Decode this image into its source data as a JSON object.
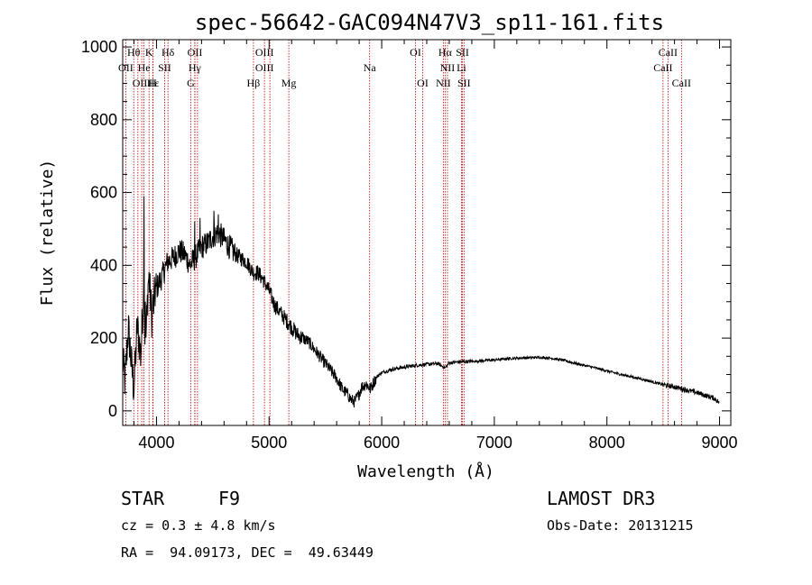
{
  "chart_data": {
    "type": "line",
    "title": "spec-56642-GAC094N47V3_sp11-161.fits",
    "xlabel": "Wavelength (Å)",
    "ylabel": "Flux (relative)",
    "xlim": [
      3700,
      9100
    ],
    "ylim": [
      -40,
      1020
    ],
    "xticks": [
      4000,
      5000,
      6000,
      7000,
      8000,
      9000
    ],
    "yticks": [
      0,
      200,
      400,
      600,
      800,
      1000
    ],
    "grid": false,
    "series": [
      {
        "name": "spectrum",
        "anchors": [
          [
            3700,
            140
          ],
          [
            3720,
            80
          ],
          [
            3750,
            230
          ],
          [
            3780,
            120
          ],
          [
            3800,
            60
          ],
          [
            3830,
            240
          ],
          [
            3860,
            150
          ],
          [
            3890,
            360
          ],
          [
            3900,
            150
          ],
          [
            3930,
            380
          ],
          [
            3960,
            250
          ],
          [
            3990,
            330
          ],
          [
            4050,
            370
          ],
          [
            4100,
            410
          ],
          [
            4150,
            420
          ],
          [
            4200,
            440
          ],
          [
            4250,
            430
          ],
          [
            4300,
            400
          ],
          [
            4340,
            420
          ],
          [
            4400,
            450
          ],
          [
            4450,
            460
          ],
          [
            4500,
            480
          ],
          [
            4550,
            490
          ],
          [
            4600,
            470
          ],
          [
            4650,
            450
          ],
          [
            4700,
            430
          ],
          [
            4750,
            420
          ],
          [
            4800,
            410
          ],
          [
            4860,
            380
          ],
          [
            4900,
            380
          ],
          [
            4950,
            360
          ],
          [
            5000,
            330
          ],
          [
            5050,
            290
          ],
          [
            5100,
            270
          ],
          [
            5150,
            250
          ],
          [
            5200,
            230
          ],
          [
            5250,
            210
          ],
          [
            5300,
            200
          ],
          [
            5350,
            190
          ],
          [
            5400,
            170
          ],
          [
            5450,
            150
          ],
          [
            5500,
            130
          ],
          [
            5550,
            110
          ],
          [
            5600,
            90
          ],
          [
            5650,
            60
          ],
          [
            5700,
            45
          ],
          [
            5730,
            30
          ],
          [
            5760,
            25
          ],
          [
            5790,
            40
          ],
          [
            5820,
            65
          ],
          [
            5860,
            75
          ],
          [
            5900,
            60
          ],
          [
            5930,
            80
          ],
          [
            5960,
            95
          ],
          [
            6000,
            105
          ],
          [
            6050,
            110
          ],
          [
            6100,
            115
          ],
          [
            6200,
            120
          ],
          [
            6300,
            125
          ],
          [
            6400,
            128
          ],
          [
            6500,
            130
          ],
          [
            6563,
            118
          ],
          [
            6600,
            132
          ],
          [
            6700,
            135
          ],
          [
            6800,
            136
          ],
          [
            6900,
            138
          ],
          [
            7000,
            140
          ],
          [
            7100,
            143
          ],
          [
            7200,
            145
          ],
          [
            7300,
            146
          ],
          [
            7400,
            147
          ],
          [
            7500,
            145
          ],
          [
            7600,
            140
          ],
          [
            7700,
            132
          ],
          [
            7800,
            125
          ],
          [
            7900,
            118
          ],
          [
            8000,
            110
          ],
          [
            8100,
            102
          ],
          [
            8200,
            95
          ],
          [
            8300,
            88
          ],
          [
            8400,
            80
          ],
          [
            8500,
            72
          ],
          [
            8600,
            66
          ],
          [
            8700,
            58
          ],
          [
            8800,
            50
          ],
          [
            8900,
            40
          ],
          [
            8950,
            35
          ],
          [
            8990,
            25
          ],
          [
            9000,
            18
          ]
        ]
      }
    ],
    "spikes": [
      [
        3835,
        260
      ],
      [
        3890,
        590
      ],
      [
        3900,
        300
      ],
      [
        3931,
        360
      ],
      [
        3968,
        320
      ],
      [
        4340,
        520
      ],
      [
        4386,
        530
      ],
      [
        4510,
        550
      ],
      [
        4550,
        540
      ]
    ],
    "line_markers": {
      "row1": [
        {
          "label": "Hθ",
          "x": 3798
        },
        {
          "label": "K",
          "x": 3934
        },
        {
          "label": "Hδ",
          "x": 4102
        },
        {
          "label": "OII",
          "x": 4341
        },
        {
          "label": "OIII",
          "x": 4959
        },
        {
          "label": "OI",
          "x": 6300
        },
        {
          "label": "Hα",
          "x": 6563
        },
        {
          "label": "SII",
          "x": 6717
        },
        {
          "label": "CaII",
          "x": 8542
        }
      ],
      "row2": [
        {
          "label": "OII",
          "x": 3727
        },
        {
          "label": "He",
          "x": 3889
        },
        {
          "label": "SII",
          "x": 4072
        },
        {
          "label": "Hγ",
          "x": 4340
        },
        {
          "label": "OIII",
          "x": 4959
        },
        {
          "label": "Na",
          "x": 5893
        },
        {
          "label": "NII",
          "x": 6584
        },
        {
          "label": "Li",
          "x": 6708
        },
        {
          "label": "CaII",
          "x": 8498
        }
      ],
      "row3": [
        {
          "label": "OIII",
          "x": 3869
        },
        {
          "label": "Hε",
          "x": 3970
        },
        {
          "label": "H",
          "x": 3968
        },
        {
          "label": "G",
          "x": 4305
        },
        {
          "label": "Hβ",
          "x": 4861
        },
        {
          "label": "Mg",
          "x": 5175
        },
        {
          "label": "OI",
          "x": 6364
        },
        {
          "label": "NII",
          "x": 6548
        },
        {
          "label": "SII",
          "x": 6731
        },
        {
          "label": "CaII",
          "x": 8662
        }
      ],
      "extra_lines": [
        3798,
        3835,
        3889,
        3934,
        3968,
        4102,
        4305,
        4341,
        4364,
        4861,
        4959,
        5007,
        5175,
        5893,
        6300,
        6364,
        6548,
        6563,
        6584,
        6708,
        6717,
        6731,
        8498,
        8542,
        8662
      ]
    }
  },
  "footer": {
    "class": "STAR",
    "subclass": "F9",
    "survey": "LAMOST DR3",
    "cz": "cz = 0.3 ± 4.8 km/s",
    "obs_date": "Obs-Date: 20131215",
    "coords": "RA =  94.09173, DEC =  49.63449"
  },
  "colors": {
    "line": "#000000",
    "marker": "#c00000",
    "axis": "#000000"
  }
}
